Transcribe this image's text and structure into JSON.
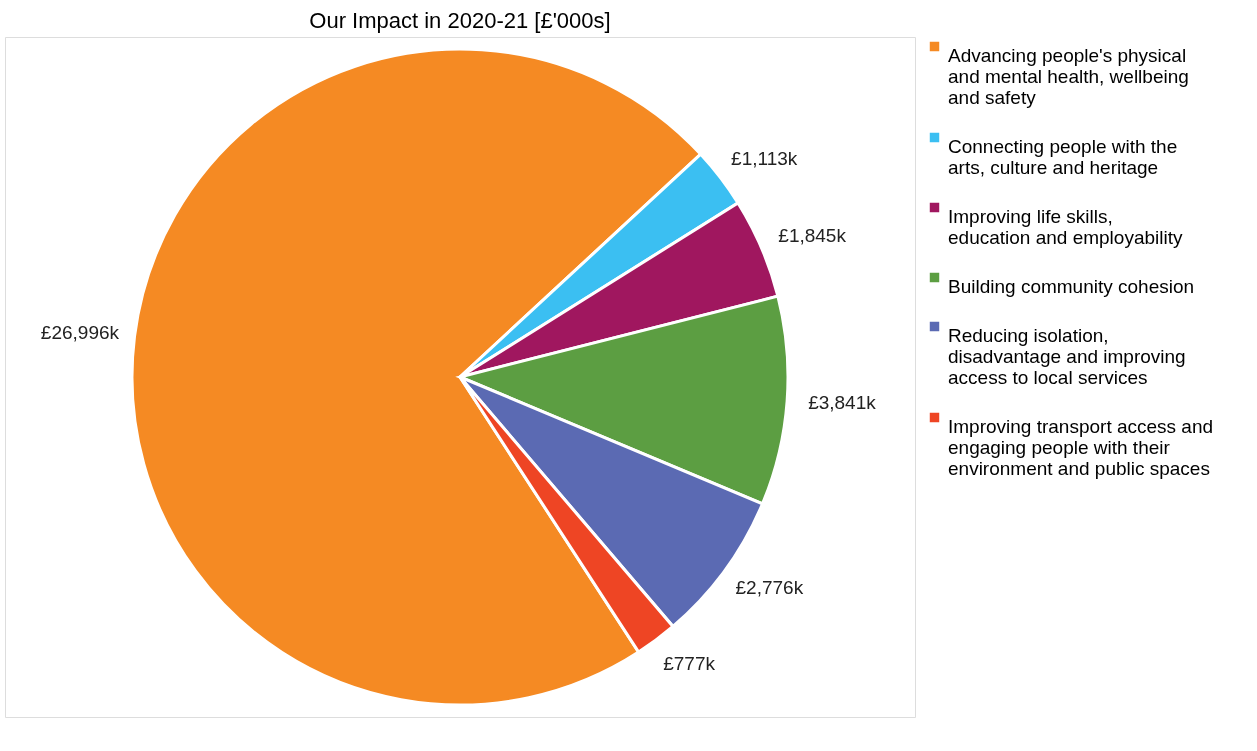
{
  "chart_data": {
    "type": "pie",
    "title": "Our Impact in 2020-21 [£'000s]",
    "categories": [
      "Advancing people's physical and mental health, wellbeing and safety",
      "Connecting people with the arts, culture and heritage",
      "Improving life skills, education and employability",
      "Building community cohesion",
      "Reducing isolation, disadvantage and improving access to local services",
      "Improving transport access and engaging people with their environment and public spaces"
    ],
    "values": [
      26996,
      1113,
      1845,
      3841,
      2776,
      777
    ],
    "value_labels": [
      "£26,996k",
      "£1,113k",
      "£1,845k",
      "£3,841k",
      "£2,776k",
      "£777k"
    ],
    "colors": [
      "#f58a23",
      "#3bbff2",
      "#a0175f",
      "#5c9e42",
      "#5b6ab3",
      "#ee4524"
    ],
    "legend": "right"
  }
}
